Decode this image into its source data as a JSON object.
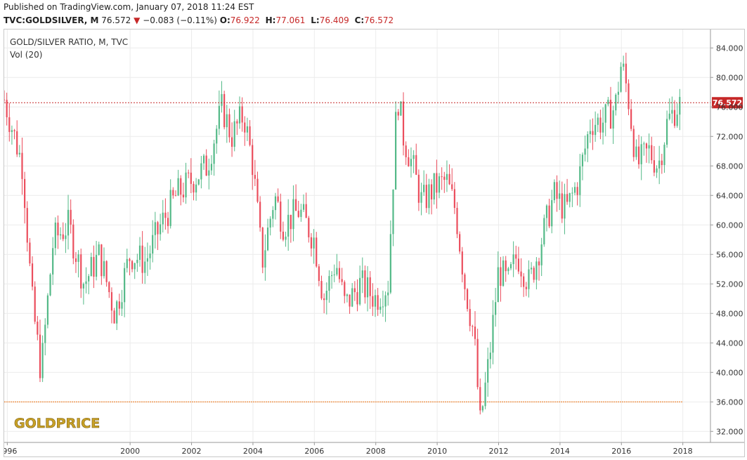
{
  "header": {
    "published": "Published on TradingView.com, January 07, 2018 11:24 EST",
    "symbol": "TVC:GOLDSILVER, M",
    "last": "76.572",
    "arrow": "▼",
    "change": "−0.083 (−0.11%)",
    "o_label": "O:",
    "o_val": "76.922",
    "h_label": "H:",
    "h_val": "77.061",
    "l_label": "L:",
    "l_val": "76.409",
    "c_label": "C:",
    "c_val": "76.572"
  },
  "chart_data": {
    "type": "candlestick",
    "title": "GOLD/SILVER RATIO, M, TVC",
    "subtitle": "Vol (20)",
    "x_ticks": [
      "1996",
      "2000",
      "2002",
      "2004",
      "2006",
      "2008",
      "2010",
      "2012",
      "2014",
      "2016",
      "2018"
    ],
    "y_ticks": [
      "32.000",
      "36.000",
      "40.000",
      "44.000",
      "48.000",
      "52.000",
      "56.000",
      "60.000",
      "64.000",
      "68.000",
      "72.000",
      "76.000",
      "80.000",
      "84.000"
    ],
    "ylim": [
      30.5,
      86.5
    ],
    "xlim": [
      1995.9,
      2018.9
    ],
    "last_price_label": "76.572",
    "last_price": 76.572,
    "last_price_line_color": "#c62828",
    "horizontal_line": 36.0,
    "horizontal_line_color": "#f08a3c",
    "up_color": "#53b987",
    "down_color": "#eb4d5c",
    "grid": true,
    "candles_monthly_close": [
      [
        1995.9,
        77.0
      ],
      [
        1996.5,
        68.0
      ],
      [
        1996.8,
        50.0
      ],
      [
        1997.1,
        40.0
      ],
      [
        1997.5,
        58.0
      ],
      [
        1998.0,
        60.0
      ],
      [
        1998.5,
        52.0
      ],
      [
        1999.0,
        56.0
      ],
      [
        1999.5,
        48.0
      ],
      [
        2000.0,
        56.0
      ],
      [
        2000.5,
        55.0
      ],
      [
        2001.0,
        60.0
      ],
      [
        2001.5,
        64.0
      ],
      [
        2002.0,
        66.0
      ],
      [
        2002.5,
        68.0
      ],
      [
        2003.0,
        76.0
      ],
      [
        2003.3,
        72.0
      ],
      [
        2003.7,
        75.0
      ],
      [
        2004.0,
        68.0
      ],
      [
        2004.3,
        55.0
      ],
      [
        2004.7,
        64.0
      ],
      [
        2005.0,
        60.0
      ],
      [
        2005.5,
        62.0
      ],
      [
        2006.0,
        58.0
      ],
      [
        2006.3,
        50.0
      ],
      [
        2006.7,
        55.0
      ],
      [
        2007.0,
        49.0
      ],
      [
        2007.5,
        52.0
      ],
      [
        2008.0,
        50.0
      ],
      [
        2008.4,
        52.0
      ],
      [
        2008.7,
        78.0
      ],
      [
        2008.9,
        72.0
      ],
      [
        2009.2,
        68.0
      ],
      [
        2009.5,
        63.0
      ],
      [
        2009.9,
        65.0
      ],
      [
        2010.3,
        66.0
      ],
      [
        2010.6,
        62.0
      ],
      [
        2010.9,
        52.0
      ],
      [
        2011.2,
        45.0
      ],
      [
        2011.4,
        33.0
      ],
      [
        2011.7,
        42.0
      ],
      [
        2012.0,
        54.0
      ],
      [
        2012.3,
        52.0
      ],
      [
        2012.6,
        56.0
      ],
      [
        2013.0,
        52.0
      ],
      [
        2013.4,
        58.0
      ],
      [
        2013.8,
        64.0
      ],
      [
        2014.2,
        62.0
      ],
      [
        2014.6,
        66.0
      ],
      [
        2015.0,
        74.0
      ],
      [
        2015.4,
        74.0
      ],
      [
        2015.8,
        76.0
      ],
      [
        2016.0,
        82.0
      ],
      [
        2016.2,
        78.0
      ],
      [
        2016.5,
        68.0
      ],
      [
        2016.9,
        70.0
      ],
      [
        2017.2,
        68.0
      ],
      [
        2017.5,
        74.0
      ],
      [
        2017.8,
        76.0
      ],
      [
        2018.0,
        76.572
      ]
    ]
  },
  "logo": {
    "text": "GOLDPRICE"
  }
}
